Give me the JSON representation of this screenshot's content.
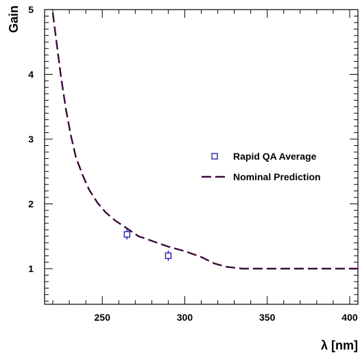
{
  "chart_data": {
    "type": "scatter",
    "xlabel": "λ [nm]",
    "ylabel": "Gain",
    "xlim": [
      215,
      405
    ],
    "ylim": [
      0.45,
      5.0
    ],
    "xticks": [
      250,
      300,
      350,
      400
    ],
    "yticks": [
      1,
      2,
      3,
      4,
      5
    ],
    "xtick_labels": [
      "250",
      "300",
      "350",
      "400"
    ],
    "ytick_labels": [
      "1",
      "2",
      "3",
      "4",
      "5"
    ],
    "grid": false,
    "legend_position": "right",
    "series": [
      {
        "name": "Rapid QA Average",
        "kind": "points",
        "marker": "open-square",
        "color": "#1f1fb4",
        "points": [
          {
            "x": 265,
            "y": 1.53,
            "err": 0.08
          },
          {
            "x": 290,
            "y": 1.2,
            "err": 0.08
          }
        ]
      },
      {
        "name": "Nominal Prediction",
        "kind": "line",
        "style": "dashed",
        "color": "#3a0a3a",
        "points": [
          {
            "x": 220,
            "y": 4.95
          },
          {
            "x": 222,
            "y": 4.55
          },
          {
            "x": 225,
            "y": 3.95
          },
          {
            "x": 228,
            "y": 3.45
          },
          {
            "x": 231,
            "y": 3.05
          },
          {
            "x": 234,
            "y": 2.72
          },
          {
            "x": 238,
            "y": 2.45
          },
          {
            "x": 242,
            "y": 2.22
          },
          {
            "x": 247,
            "y": 2.02
          },
          {
            "x": 252,
            "y": 1.87
          },
          {
            "x": 258,
            "y": 1.74
          },
          {
            "x": 265,
            "y": 1.62
          },
          {
            "x": 272,
            "y": 1.5
          },
          {
            "x": 280,
            "y": 1.43
          },
          {
            "x": 290,
            "y": 1.34
          },
          {
            "x": 300,
            "y": 1.27
          },
          {
            "x": 310,
            "y": 1.18
          },
          {
            "x": 318,
            "y": 1.08
          },
          {
            "x": 325,
            "y": 1.03
          },
          {
            "x": 335,
            "y": 1.0
          },
          {
            "x": 350,
            "y": 1.0
          },
          {
            "x": 375,
            "y": 1.0
          },
          {
            "x": 405,
            "y": 1.0
          }
        ]
      }
    ]
  }
}
